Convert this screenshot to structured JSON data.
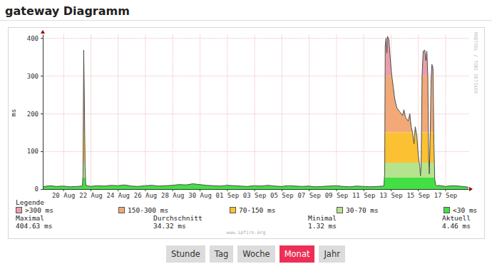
{
  "chart_data": {
    "type": "area",
    "title": "gateway Diagramm",
    "ylabel": "ms",
    "x": [
      18.5,
      19,
      19.5,
      20,
      20.5,
      21,
      21.4,
      21.45,
      21.5,
      21.55,
      21.6,
      21.65,
      22,
      22.5,
      23,
      23.5,
      24,
      24.5,
      25,
      25.5,
      26,
      26.5,
      27,
      27.5,
      28,
      28.5,
      29,
      29.5,
      30,
      30.5,
      31,
      31.5,
      32,
      32.5,
      33,
      33.5,
      34,
      34.5,
      35,
      35.5,
      36,
      36.5,
      37,
      37.5,
      38,
      38.5,
      39,
      39.5,
      40,
      40.5,
      41,
      41.5,
      42,
      42.5,
      43,
      43.5,
      43.56,
      43.6,
      43.66,
      43.72,
      43.77,
      43.87,
      43.98,
      44.08,
      44.19,
      44.29,
      44.45,
      44.66,
      44.87,
      44.97,
      45.08,
      45.29,
      45.4,
      45.5,
      45.6,
      45.71,
      45.8,
      45.92,
      46.02,
      46.13,
      46.18,
      46.23,
      46.3,
      46.38,
      46.5,
      46.58,
      46.65,
      46.72,
      46.78,
      46.83,
      46.9,
      46.96,
      47.02,
      47.1,
      47.17,
      47.23,
      47.3,
      47.4,
      47.5,
      48,
      48.5,
      49,
      49.5,
      49.7
    ],
    "series": [
      {
        "color": "#4d4d4d",
        "values": [
          6,
          9,
          7,
          8,
          6,
          7,
          8,
          40,
          368,
          230,
          60,
          10,
          7,
          9,
          8,
          10,
          9,
          11,
          8,
          7,
          9,
          10,
          8,
          9,
          10,
          12,
          11,
          14,
          12,
          10,
          9,
          8,
          10,
          9,
          8,
          7,
          9,
          8,
          10,
          8,
          7,
          9,
          8,
          7,
          8,
          6,
          7,
          8,
          9,
          7,
          6,
          8,
          7,
          6,
          7,
          8,
          40,
          380,
          400,
          360,
          404.63,
          395,
          340,
          300,
          270,
          240,
          215,
          205,
          195,
          210,
          190,
          180,
          200,
          165,
          150,
          120,
          165,
          140,
          90,
          60,
          35,
          60,
          300,
          365,
          368,
          340,
          365,
          300,
          80,
          40,
          150,
          290,
          330,
          320,
          120,
          25,
          12,
          8,
          10,
          7,
          9,
          8,
          6,
          5
        ]
      }
    ],
    "xlim": [
      18.5,
      49.7
    ],
    "xticks": [
      {
        "value": 20,
        "label": "20 Aug"
      },
      {
        "value": 22,
        "label": "22 Aug"
      },
      {
        "value": 24,
        "label": "24 Aug"
      },
      {
        "value": 26,
        "label": "26 Aug"
      },
      {
        "value": 28,
        "label": "28 Aug"
      },
      {
        "value": 30,
        "label": "30 Aug"
      },
      {
        "value": 32,
        "label": "01 Sep"
      },
      {
        "value": 34,
        "label": "03 Sep"
      },
      {
        "value": 36,
        "label": "05 Sep"
      },
      {
        "value": 38,
        "label": "07 Sep"
      },
      {
        "value": 40,
        "label": "09 Sep"
      },
      {
        "value": 42,
        "label": "11 Sep"
      },
      {
        "value": 44,
        "label": "13 Sep"
      },
      {
        "value": 46,
        "label": "15 Sep"
      },
      {
        "value": 48,
        "label": "17 Sep"
      }
    ],
    "ylim": [
      0,
      410
    ],
    "yticks": [
      0,
      100,
      200,
      300,
      400
    ],
    "grid": true,
    "legend_title": "Legende",
    "bands": [
      {
        "label": ">300 ms",
        "color": "#eb9ea8",
        "from": 300,
        "to": null
      },
      {
        "label": "150-300 ms",
        "color": "#f2a977",
        "from": 150,
        "to": 300
      },
      {
        "label": "70-150 ms",
        "color": "#fbc132",
        "from": 70,
        "to": 150
      },
      {
        "label": "30-70 ms",
        "color": "#b6e48e",
        "from": 30,
        "to": 70
      },
      {
        "label": "<30 ms",
        "color": "#42e042",
        "from": null,
        "to": 30
      }
    ],
    "stats": [
      {
        "label": "Maximal",
        "value": "404.63 ms"
      },
      {
        "label": "Durchschnitt",
        "value": "34.32 ms"
      },
      {
        "label": "Minimal",
        "value": "1.32 ms"
      },
      {
        "label": "Aktuell",
        "value": "4.46 ms"
      }
    ],
    "annotations": [
      "RRDTOOL / TOBI OETIKER",
      "www.ipfire.org"
    ]
  },
  "page": {
    "buttons": [
      "Stunde",
      "Tag",
      "Woche",
      "Monat",
      "Jahr"
    ],
    "active": 3
  }
}
